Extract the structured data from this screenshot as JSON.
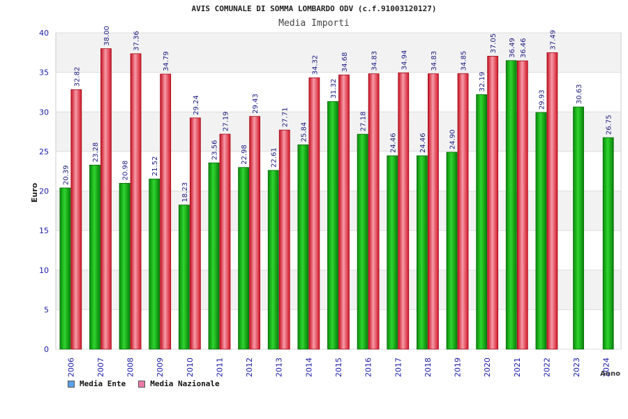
{
  "chart_data": {
    "type": "bar",
    "title": "AVIS COMUNALE DI SOMMA LOMBARDO ODV (c.f.91003120127)",
    "subtitle": "Media Importi",
    "ylabel": "Euro",
    "xlabel": "Anno",
    "ylim": [
      0,
      40
    ],
    "yticks": [
      0,
      5,
      10,
      15,
      20,
      25,
      30,
      35,
      40
    ],
    "categories": [
      "2006",
      "2007",
      "2008",
      "2009",
      "2010",
      "2011",
      "2012",
      "2013",
      "2014",
      "2015",
      "2016",
      "2017",
      "2018",
      "2019",
      "2020",
      "2021",
      "2022",
      "2023",
      "2024"
    ],
    "series": [
      {
        "name": "Media Ente",
        "color": "#1fb51f",
        "values": [
          20.39,
          23.28,
          20.98,
          21.52,
          18.23,
          23.56,
          22.98,
          22.61,
          25.84,
          31.32,
          27.18,
          24.46,
          24.46,
          24.9,
          32.19,
          36.49,
          29.93,
          30.63,
          26.75
        ],
        "labels": [
          "20.39",
          "23.28",
          "20.98",
          "21.52",
          "18.23",
          "23.56",
          "22.98",
          "22.61",
          "25.84",
          "31.32",
          "27.18",
          "24.46",
          "24.46",
          "24.90",
          "32.19",
          "36.49",
          "29.93",
          "30.63",
          "26.75"
        ]
      },
      {
        "name": "Media Nazionale",
        "color": "#e8283a",
        "values": [
          32.82,
          38.0,
          37.36,
          34.79,
          29.24,
          27.19,
          29.43,
          27.71,
          34.32,
          34.68,
          34.83,
          34.94,
          34.83,
          34.85,
          37.05,
          36.46,
          37.49,
          null,
          null
        ],
        "labels": [
          "32.82",
          "38.00",
          "37.36",
          "34.79",
          "29.24",
          "27.19",
          "29.43",
          "27.71",
          "34.32",
          "34.68",
          "34.83",
          "34.94",
          "34.83",
          "34.85",
          "37.05",
          "36.46",
          "37.49",
          "",
          ""
        ]
      }
    ],
    "legend": {
      "position": "bottom-left",
      "items": [
        {
          "label": "Media Ente",
          "swatch": "#5aa0e6"
        },
        {
          "label": "Media Nazionale",
          "swatch": "#e87aa8"
        }
      ]
    },
    "grid": true,
    "band_colors": [
      "#f2f2f2",
      "#ffffff"
    ],
    "axis_color": "#1a1aa6",
    "value_label_color": "#1a1a80"
  }
}
